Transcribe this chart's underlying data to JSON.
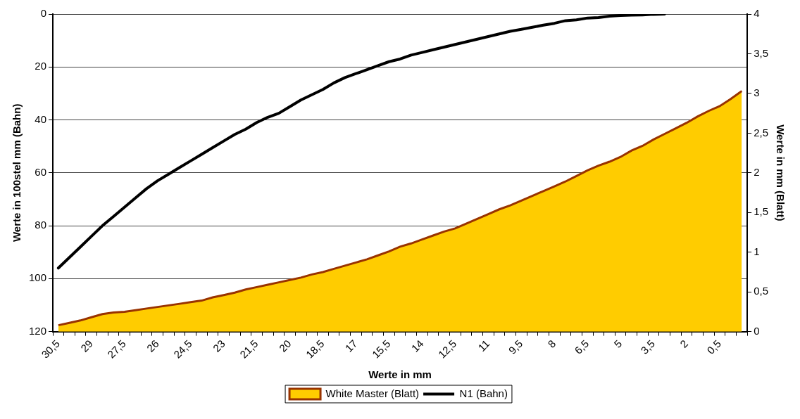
{
  "chart_data": {
    "type": "area",
    "xlabel": "Werte in mm",
    "ylabel": "Werte in 100stel mm (Bahn)",
    "y2label": "Werte in mm (Blatt)",
    "categories": [
      "30,5",
      null,
      null,
      "29",
      null,
      null,
      "27,5",
      null,
      null,
      "26",
      null,
      null,
      "24,5",
      null,
      null,
      "23",
      null,
      null,
      "21,5",
      null,
      null,
      "20",
      null,
      null,
      "18,5",
      null,
      null,
      "17",
      null,
      null,
      "15,5",
      null,
      null,
      "14",
      null,
      null,
      "12,5",
      null,
      null,
      "11",
      null,
      null,
      "9,5",
      null,
      null,
      "8",
      null,
      null,
      "6,5",
      null,
      null,
      "5",
      null,
      null,
      "3,5",
      null,
      null,
      "2",
      null,
      null,
      "0,5",
      null,
      null
    ],
    "series": [
      {
        "name": "White Master (Blatt)",
        "axis": "y2",
        "color": "#ffcc00",
        "values": [
          0.08,
          0.11,
          0.14,
          0.18,
          0.22,
          0.24,
          0.25,
          0.27,
          0.29,
          0.31,
          0.33,
          0.35,
          0.37,
          0.39,
          0.43,
          0.46,
          0.49,
          0.53,
          0.56,
          0.59,
          0.62,
          0.65,
          0.68,
          0.72,
          0.75,
          0.79,
          0.83,
          0.87,
          0.91,
          0.96,
          1.01,
          1.07,
          1.11,
          1.16,
          1.21,
          1.26,
          1.3,
          1.36,
          1.42,
          1.48,
          1.54,
          1.59,
          1.65,
          1.71,
          1.77,
          1.83,
          1.89,
          1.96,
          2.03,
          2.09,
          2.14,
          2.2,
          2.28,
          2.34,
          2.42,
          2.49,
          2.56,
          2.63,
          2.71,
          2.78,
          2.84,
          2.93,
          3.03
        ]
      },
      {
        "name": "N1 (Bahn)",
        "type": "line",
        "color": "#000000",
        "values": [
          96,
          92,
          88,
          84,
          80,
          76.5,
          73,
          69.5,
          66,
          63,
          60.5,
          58,
          55.5,
          53,
          50.5,
          48,
          45.5,
          43.5,
          41,
          39,
          37.5,
          35,
          32.5,
          30.5,
          28.5,
          26,
          24,
          22.5,
          21,
          19.5,
          18,
          17,
          15.5,
          14.5,
          13.5,
          12.5,
          11.5,
          10.5,
          9.5,
          8.5,
          7.5,
          6.5,
          5.8,
          5,
          4.2,
          3.5,
          2.5,
          2.2,
          1.5,
          1.3,
          0.8,
          0.5,
          0.4,
          0.3,
          0.1,
          0,
          null,
          null,
          null,
          null,
          null,
          null,
          null
        ]
      }
    ],
    "ylim": [
      120,
      0
    ],
    "yticks": [
      0,
      20,
      40,
      60,
      80,
      100,
      120
    ],
    "y2lim": [
      0,
      4
    ],
    "y2ticks": [
      0,
      {
        "value": 0.5,
        "label": "0,5"
      },
      1,
      {
        "value": 1.5,
        "label": "1,5"
      },
      2,
      {
        "value": 2.5,
        "label": "2,5"
      },
      3,
      {
        "value": 3.5,
        "label": "3,5"
      },
      4
    ],
    "grid": "y",
    "legend": "bottom",
    "marker": "none"
  }
}
